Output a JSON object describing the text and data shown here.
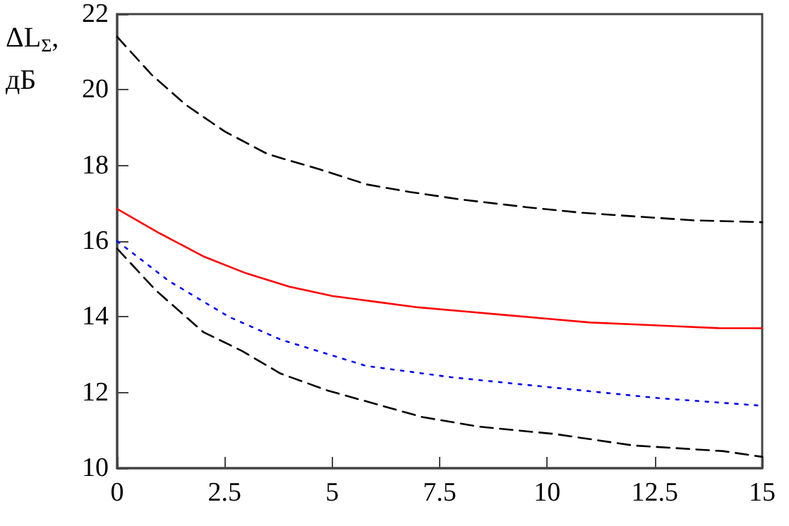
{
  "chart_data": {
    "type": "line",
    "ylabel": "ΔL$_{Σ}$, дБ",
    "xlim": [
      0,
      15
    ],
    "xticks": [
      0,
      2.5,
      5,
      7.5,
      10,
      12.5,
      15
    ],
    "ylim": [
      10,
      22
    ],
    "yticks": [
      10,
      12,
      14,
      16,
      18,
      20,
      22
    ],
    "grid": false,
    "marker": "none",
    "series": [
      {
        "color": "#000000",
        "line_style": "dashed",
        "x": [
          0,
          0.8,
          1.6,
          2.5,
          3.5,
          4.7,
          5.8,
          6.8,
          8,
          9.5,
          10.8,
          12.1,
          13.4,
          15
        ],
        "values": [
          21.4,
          20.4,
          19.6,
          18.9,
          18.3,
          17.9,
          17.5,
          17.3,
          17.1,
          16.9,
          16.75,
          16.65,
          16.55,
          16.5
        ]
      },
      {
        "color": "#ff0000",
        "line_style": "solid",
        "x": [
          0,
          1,
          2,
          3,
          4,
          5,
          6,
          7,
          8,
          9,
          10,
          11,
          12,
          13,
          14,
          15
        ],
        "values": [
          16.85,
          16.2,
          15.6,
          15.15,
          14.8,
          14.55,
          14.4,
          14.25,
          14.15,
          14.05,
          13.95,
          13.85,
          13.8,
          13.75,
          13.7,
          13.7
        ]
      },
      {
        "color": "#0000ff",
        "line_style": "dotted",
        "x": [
          0,
          1.2,
          2.6,
          3.8,
          5.8,
          7.8,
          10.4,
          12.6,
          15
        ],
        "values": [
          16.0,
          14.95,
          14.0,
          13.4,
          12.7,
          12.4,
          12.1,
          11.85,
          11.65
        ]
      },
      {
        "color": "#000000",
        "line_style": "dashed",
        "x": [
          0,
          0.9,
          2.0,
          2.9,
          3.8,
          4.9,
          6.0,
          7.1,
          8.4,
          10.2,
          12.0,
          14.1,
          15
        ],
        "values": [
          15.8,
          14.7,
          13.6,
          13.1,
          12.5,
          12.05,
          11.7,
          11.35,
          11.1,
          10.9,
          10.6,
          10.45,
          10.3
        ]
      }
    ]
  }
}
